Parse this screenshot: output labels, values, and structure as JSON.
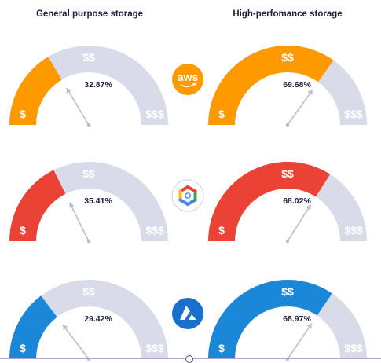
{
  "headers": {
    "left": "General purpose storage",
    "right": "High-perfomance storage"
  },
  "symbols": {
    "low": "$",
    "mid": "$$",
    "high": "$$$"
  },
  "colors": {
    "track": "#d8dce8",
    "needle": "#b9bdd0"
  },
  "chart_data": {
    "type": "gauge",
    "max": 100,
    "rows": [
      {
        "provider_icon": "aws-logo-icon",
        "provider_icon_text": "aws",
        "color": "#ff9900",
        "general_purpose": 32.87,
        "high_performance": 69.68,
        "general_label": "32.87%",
        "high_label": "69.68%"
      },
      {
        "provider_icon": "google-cloud-logo-icon",
        "provider_icon_text": "",
        "color": "#ea4335",
        "general_purpose": 35.41,
        "high_performance": 68.02,
        "general_label": "35.41%",
        "high_label": "68.02%"
      },
      {
        "provider_icon": "azure-logo-icon",
        "provider_icon_text": "",
        "color": "#1b87d8",
        "general_purpose": 29.42,
        "high_performance": 68.97,
        "general_label": "29.42%",
        "high_label": "68.97%"
      }
    ]
  }
}
